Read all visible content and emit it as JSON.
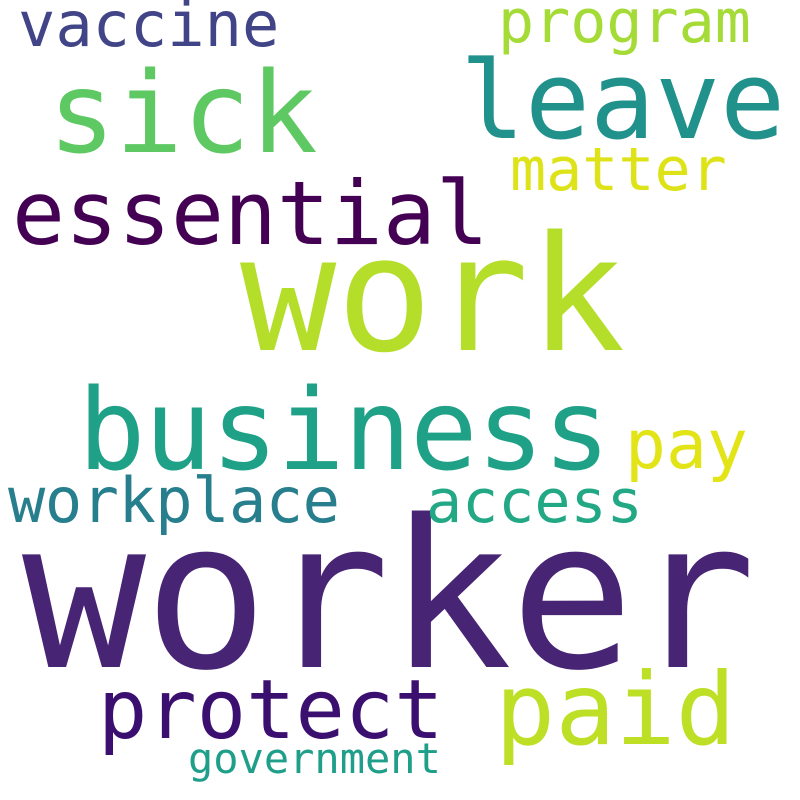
{
  "cloud": {
    "words": [
      {
        "id": "worker",
        "text": "worker",
        "color": "#482475"
      },
      {
        "id": "work",
        "text": "work",
        "color": "#b5de2b"
      },
      {
        "id": "business",
        "text": "business",
        "color": "#1fa187"
      },
      {
        "id": "sick",
        "text": "sick",
        "color": "#5ec962"
      },
      {
        "id": "leave",
        "text": "leave",
        "color": "#21918c"
      },
      {
        "id": "essential",
        "text": "essential",
        "color": "#440154"
      },
      {
        "id": "paid",
        "text": "paid",
        "color": "#bddf26"
      },
      {
        "id": "protect",
        "text": "protect",
        "color": "#3b0f70"
      },
      {
        "id": "workplace",
        "text": "workplace",
        "color": "#277f8e"
      },
      {
        "id": "vaccine",
        "text": "vaccine",
        "color": "#414487"
      },
      {
        "id": "program",
        "text": "program",
        "color": "#a5db36"
      },
      {
        "id": "matter",
        "text": "matter",
        "color": "#dde318"
      },
      {
        "id": "pay",
        "text": "pay",
        "color": "#e2e418"
      },
      {
        "id": "access",
        "text": "access",
        "color": "#22a884"
      },
      {
        "id": "government",
        "text": "government",
        "color": "#1f9e89"
      }
    ]
  }
}
